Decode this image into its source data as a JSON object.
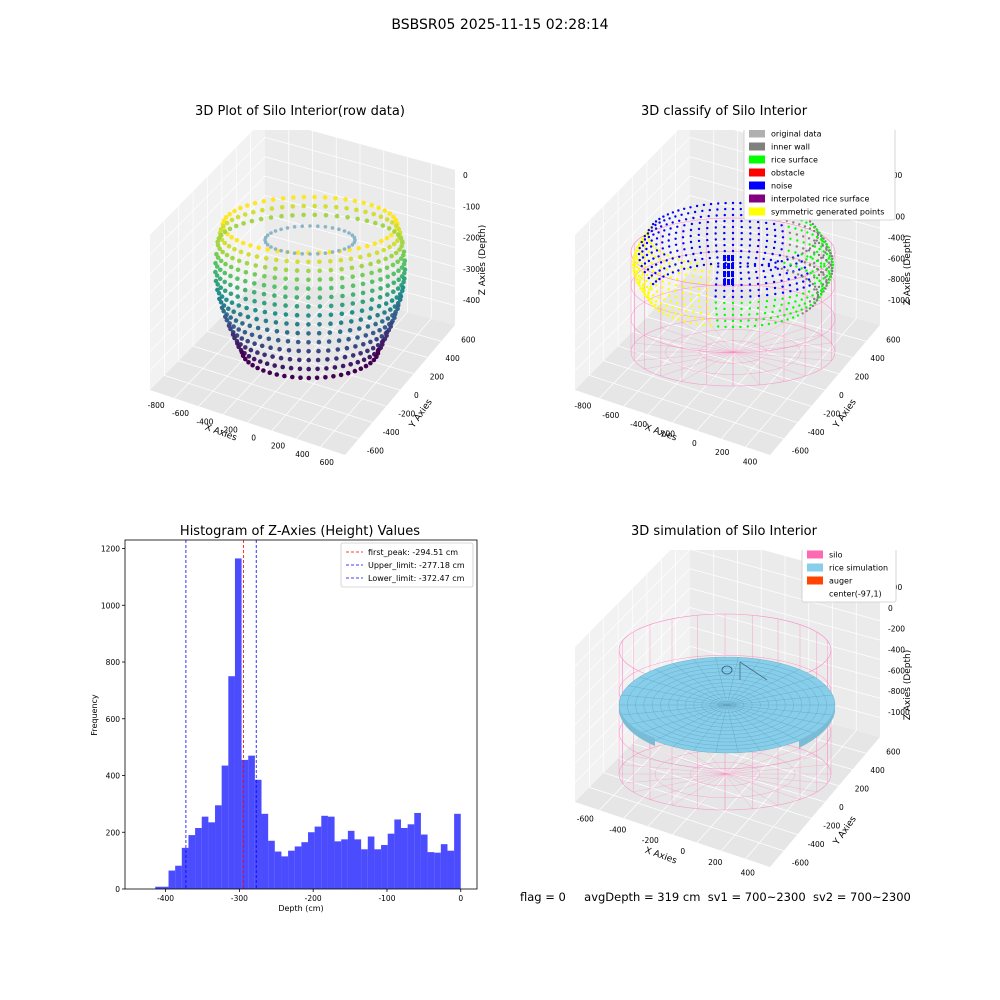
{
  "suptitle": "BSBSR05 2025-11-15 02:28:14",
  "footer": {
    "flag": "flag = 0",
    "avg": "avgDepth = 319 cm",
    "sv1": "sv1 = 700~2300",
    "sv2": "sv2 = 700~2300"
  },
  "chart_data": [
    {
      "type": "scatter3d",
      "title": "3D Plot of Silo Interior(row data)",
      "xlabel": "X Axies",
      "ylabel": "Y Axies",
      "zlabel": "Z Axies (Depth)",
      "xticks": [
        "-800",
        "-600",
        "-400",
        "-200",
        "0",
        "200",
        "400",
        "600"
      ],
      "yticks": [
        "600",
        "400",
        "200",
        "0",
        "-200",
        "-400",
        "-600"
      ],
      "zticks": [
        "0",
        "-100",
        "-200",
        "-300",
        "-400"
      ],
      "colormap": "viridis"
    },
    {
      "type": "scatter3d",
      "title": "3D classify of Silo Interior",
      "xlabel": "X Axies",
      "ylabel": "Y Axies",
      "zlabel": "Z Axies (Depth)",
      "xticks": [
        "-800",
        "-600",
        "-400",
        "-200",
        "0",
        "200",
        "400"
      ],
      "yticks": [
        "600",
        "400",
        "200",
        "0",
        "-200",
        "-400",
        "-600"
      ],
      "zticks": [
        "200",
        "0",
        "-200",
        "-400",
        "-600",
        "-800",
        "-1000"
      ],
      "legend": [
        {
          "label": "original data",
          "color": "#b0b0b0"
        },
        {
          "label": "inner wall",
          "color": "#808080"
        },
        {
          "label": "rice surface",
          "color": "#00ff00"
        },
        {
          "label": "obstacle",
          "color": "#ff0000"
        },
        {
          "label": "noise",
          "color": "#0000ff"
        },
        {
          "label": "interpolated rice surface",
          "color": "#800080"
        },
        {
          "label": "symmetric generated points",
          "color": "#ffff00"
        }
      ]
    },
    {
      "type": "histogram",
      "title": "Histogram of Z-Axies (Height) Values",
      "xlabel": "Depth (cm)",
      "ylabel": "Frequency",
      "xlim": [
        -455,
        22
      ],
      "ylim": [
        0,
        1230
      ],
      "xticks": [
        -400,
        -300,
        -200,
        -100,
        0
      ],
      "yticks": [
        0,
        200,
        400,
        600,
        800,
        1000,
        1200
      ],
      "bin_width": 9,
      "bins": [
        {
          "x": -405,
          "y": 8
        },
        {
          "x": -396,
          "y": 8
        },
        {
          "x": -387,
          "y": 65
        },
        {
          "x": -378,
          "y": 82
        },
        {
          "x": -369,
          "y": 145
        },
        {
          "x": -360,
          "y": 190
        },
        {
          "x": -351,
          "y": 215
        },
        {
          "x": -342,
          "y": 255
        },
        {
          "x": -333,
          "y": 235
        },
        {
          "x": -324,
          "y": 295
        },
        {
          "x": -315,
          "y": 435
        },
        {
          "x": -306,
          "y": 750
        },
        {
          "x": -297,
          "y": 1165
        },
        {
          "x": -288,
          "y": 455
        },
        {
          "x": -279,
          "y": 470
        },
        {
          "x": -270,
          "y": 385
        },
        {
          "x": -261,
          "y": 265
        },
        {
          "x": -252,
          "y": 170
        },
        {
          "x": -243,
          "y": 132
        },
        {
          "x": -234,
          "y": 115
        },
        {
          "x": -225,
          "y": 135
        },
        {
          "x": -216,
          "y": 150
        },
        {
          "x": -207,
          "y": 165
        },
        {
          "x": -198,
          "y": 200
        },
        {
          "x": -189,
          "y": 220
        },
        {
          "x": -180,
          "y": 258
        },
        {
          "x": -171,
          "y": 255
        },
        {
          "x": -162,
          "y": 168
        },
        {
          "x": -153,
          "y": 175
        },
        {
          "x": -144,
          "y": 205
        },
        {
          "x": -135,
          "y": 175
        },
        {
          "x": -126,
          "y": 140
        },
        {
          "x": -117,
          "y": 185
        },
        {
          "x": -108,
          "y": 140
        },
        {
          "x": -99,
          "y": 155
        },
        {
          "x": -90,
          "y": 195
        },
        {
          "x": -81,
          "y": 245
        },
        {
          "x": -72,
          "y": 215
        },
        {
          "x": -63,
          "y": 228
        },
        {
          "x": -54,
          "y": 268
        },
        {
          "x": -45,
          "y": 192
        },
        {
          "x": -36,
          "y": 130
        },
        {
          "x": -27,
          "y": 128
        },
        {
          "x": -18,
          "y": 158
        },
        {
          "x": -9,
          "y": 135
        },
        {
          "x": 0,
          "y": 265
        }
      ],
      "bar_color": "#0000ff",
      "vlines": [
        {
          "label": "first_peak: -294.51 cm",
          "x": -294.51,
          "color": "#ff0000"
        },
        {
          "label": "Upper_limit: -277.18 cm",
          "x": -277.18,
          "color": "#0000ff"
        },
        {
          "label": "Lower_limit: -372.47 cm",
          "x": -372.47,
          "color": "#0000ff"
        }
      ]
    },
    {
      "type": "surface3d",
      "title": "3D simulation of Silo Interior",
      "xlabel": "X Axies",
      "ylabel": "Y Axies",
      "zlabel": "Z Axies (Depth)",
      "xticks": [
        "-600",
        "-400",
        "-200",
        "0",
        "200",
        "400"
      ],
      "yticks": [
        "600",
        "400",
        "200",
        "0",
        "-200",
        "-400",
        "-600"
      ],
      "zticks": [
        "200",
        "0",
        "-200",
        "-400",
        "-600",
        "-800",
        "-1000"
      ],
      "legend": [
        {
          "label": "silo",
          "color": "#ff69b4"
        },
        {
          "label": "rice simulation",
          "color": "#87ceeb"
        },
        {
          "label": "auger",
          "color": "#ff4500"
        },
        {
          "label": "center(-97,1)",
          "color": ""
        }
      ]
    }
  ]
}
